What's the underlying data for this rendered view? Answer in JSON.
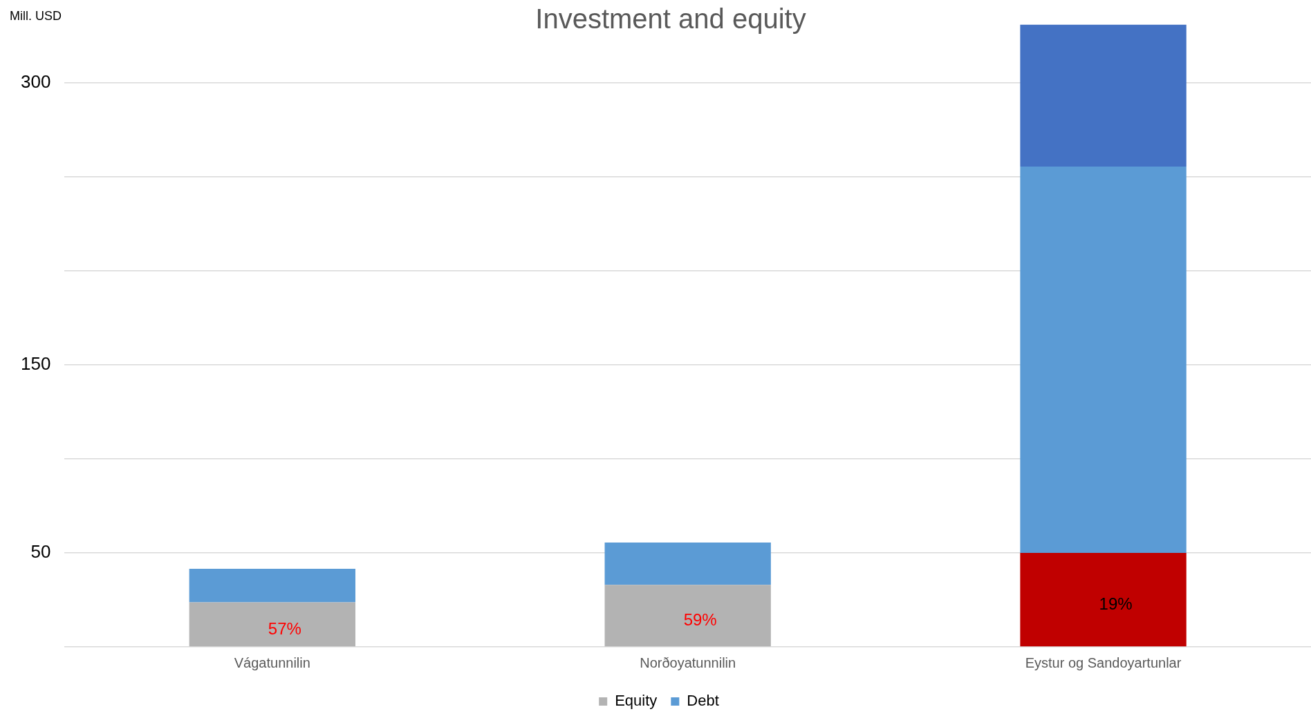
{
  "chart_data": {
    "type": "bar",
    "title": "Investment and equity",
    "ylabel": "Mill. USD",
    "categories": [
      "Vágatunnilin",
      "Norðoyatunnilin",
      "Eystur og Sandoyartunlar"
    ],
    "stacked": true,
    "series": [
      {
        "name": "Equity",
        "color": "#b3b3b3",
        "colors": [
          "#b3b3b3",
          "#b3b3b3",
          "#c00000"
        ],
        "values": [
          23.7,
          33,
          50
        ]
      },
      {
        "name": "Debt",
        "color": "#5b9bd5",
        "values": [
          17.8,
          22.5,
          205.5
        ]
      },
      {
        "color": "#4472c4",
        "values": [
          null,
          null,
          75.5
        ]
      }
    ],
    "ylim": [
      0,
      331
    ],
    "yticks": [
      {
        "value": 0,
        "label": null
      },
      50,
      {
        "value": 100,
        "label": null
      },
      150,
      {
        "value": 200,
        "label": null
      },
      {
        "value": 250,
        "label": null
      },
      300
    ],
    "annotations": [
      "57%",
      "59%",
      "19%"
    ],
    "grid": "y",
    "legend": "bottom"
  }
}
